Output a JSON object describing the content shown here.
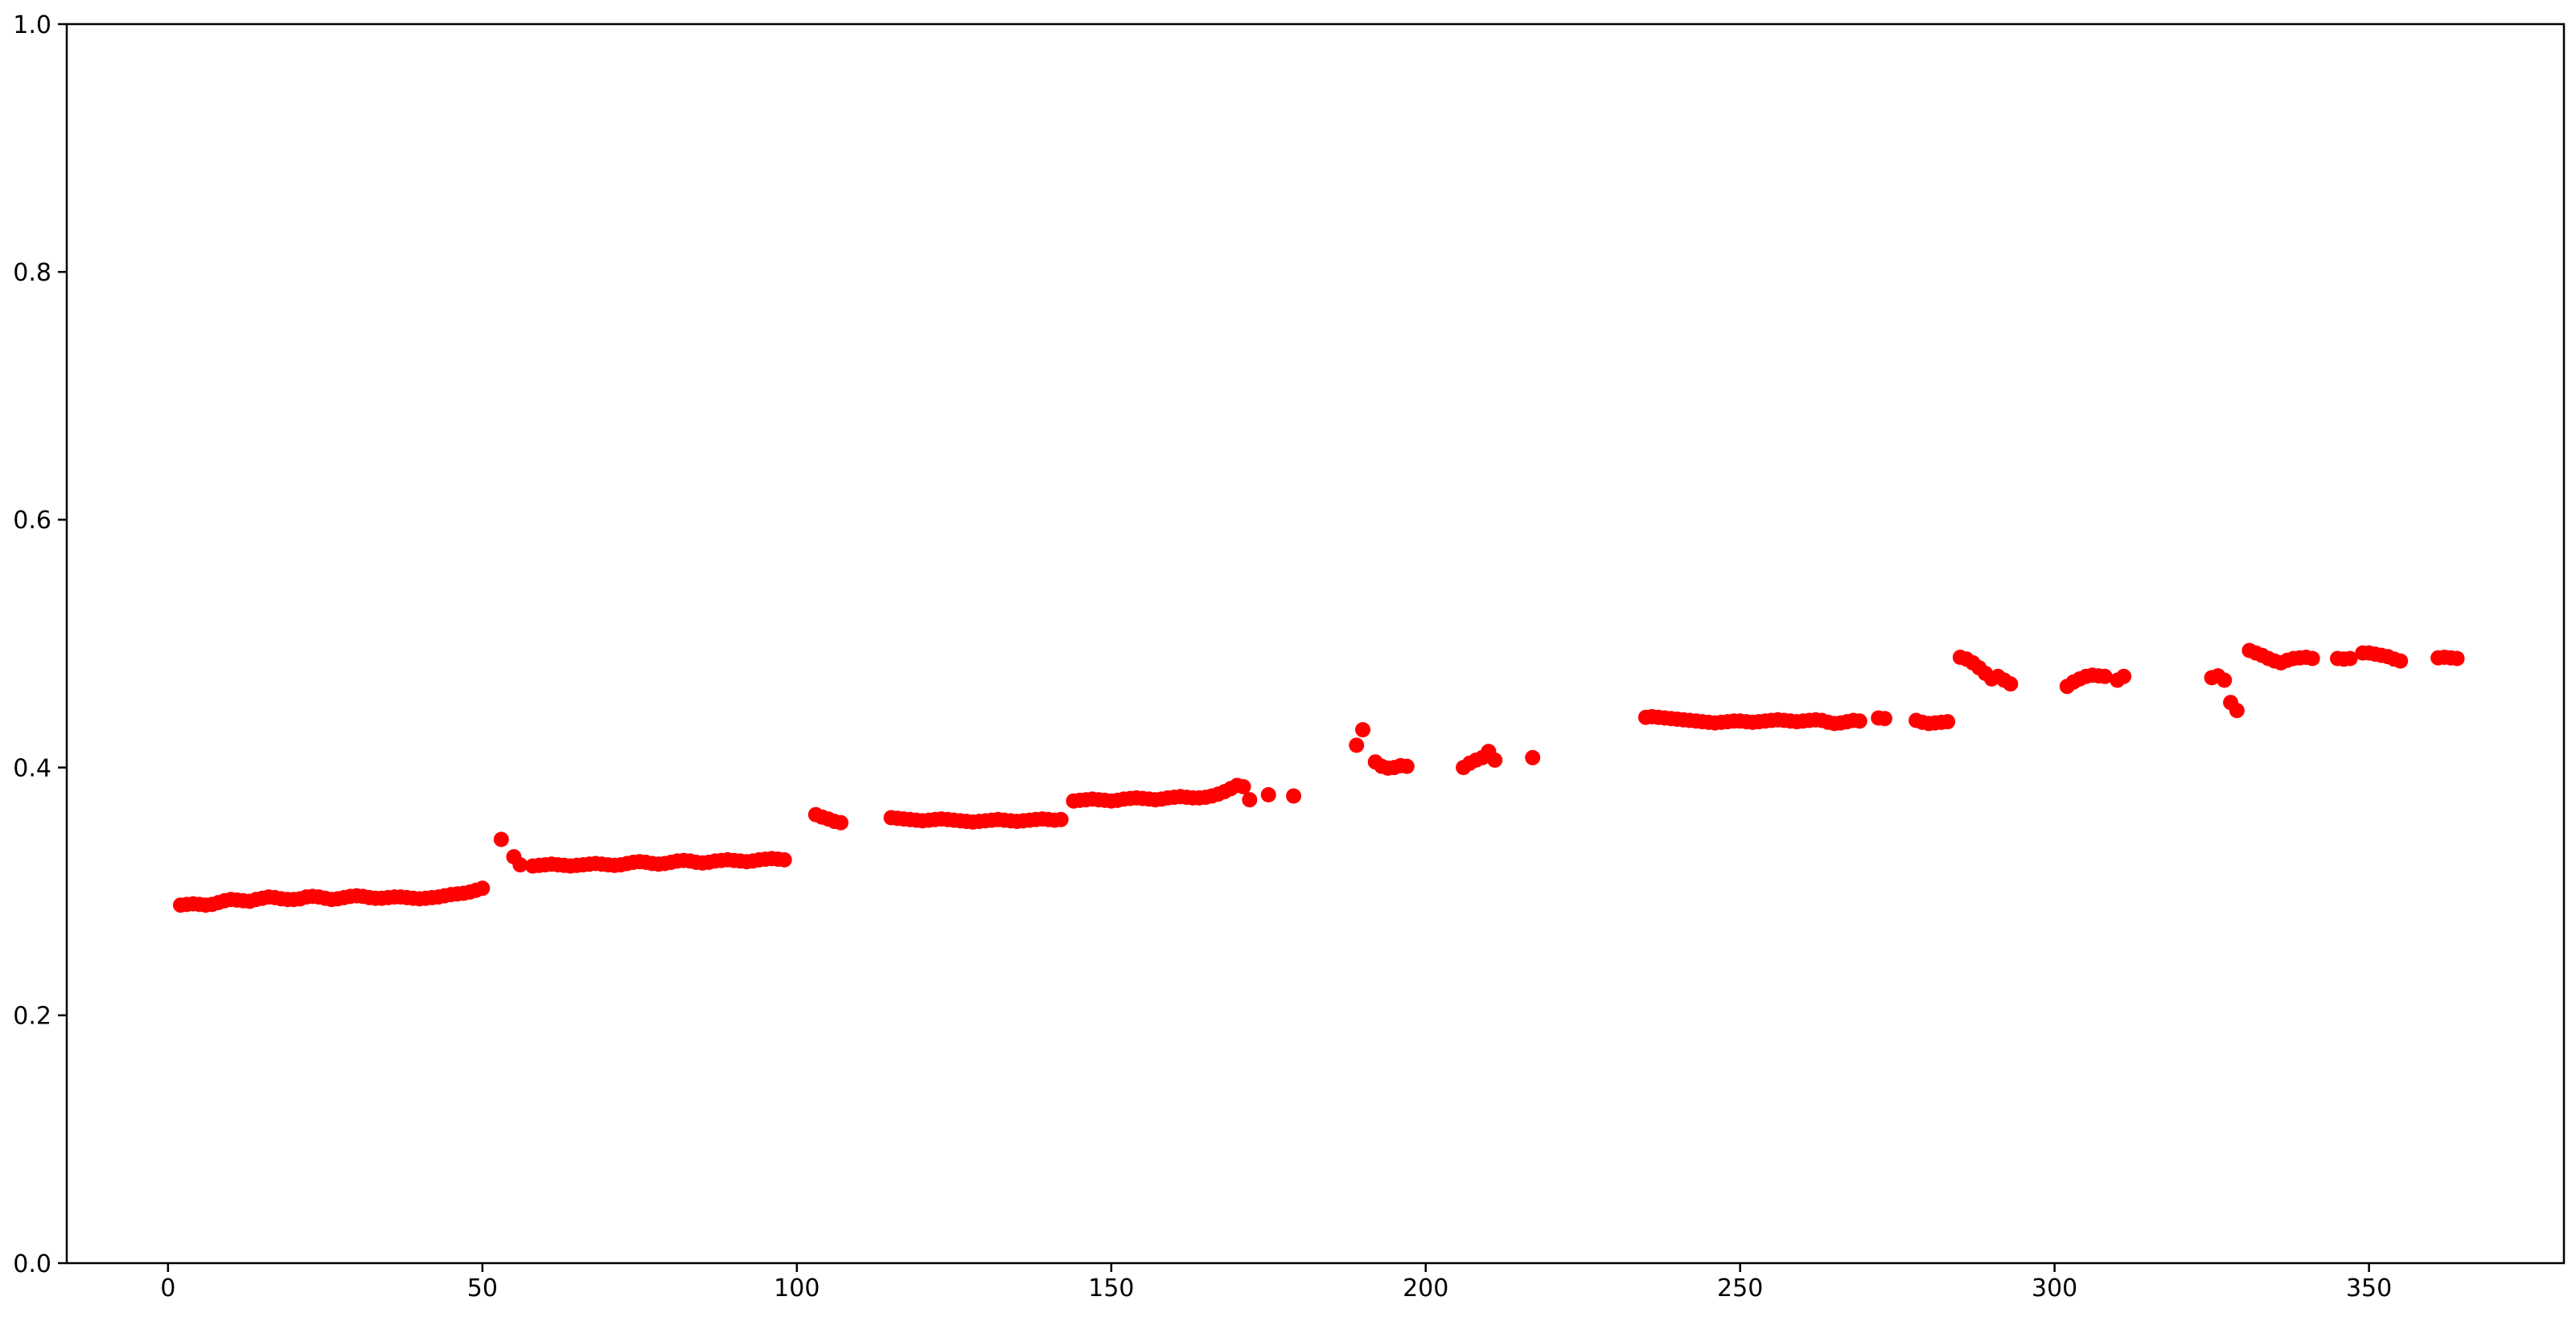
{
  "figure": {
    "background": "#ffffff",
    "axis_color": "#000000",
    "tick_label_color": "#000000"
  },
  "chart_data": {
    "type": "scatter",
    "title": "",
    "xlabel": "",
    "ylabel": "",
    "xlim": [
      -16.1,
      381.0
    ],
    "ylim": [
      0.0,
      1.0
    ],
    "x_ticks": [
      0,
      50,
      100,
      150,
      200,
      250,
      300,
      350
    ],
    "x_tick_labels": [
      "0",
      "50",
      "100",
      "150",
      "200",
      "250",
      "300",
      "350"
    ],
    "y_ticks": [
      0.0,
      0.2,
      0.4,
      0.6,
      0.8,
      1.0
    ],
    "y_tick_labels": [
      "0.0",
      "0.2",
      "0.4",
      "0.6",
      "0.8",
      "1.0"
    ],
    "grid": false,
    "legend": null,
    "frame": "full-box",
    "series": [
      {
        "name": "red-scatter",
        "color": "#ff0000",
        "marker": "circle",
        "points": [
          [
            2,
            0.289
          ],
          [
            3,
            0.2895
          ],
          [
            4,
            0.29
          ],
          [
            5,
            0.2895
          ],
          [
            6,
            0.289
          ],
          [
            7,
            0.2895
          ],
          [
            8,
            0.291
          ],
          [
            9,
            0.2925
          ],
          [
            10,
            0.2935
          ],
          [
            11,
            0.293
          ],
          [
            12,
            0.2925
          ],
          [
            13,
            0.292
          ],
          [
            14,
            0.2935
          ],
          [
            15,
            0.2945
          ],
          [
            16,
            0.2955
          ],
          [
            17,
            0.295
          ],
          [
            18,
            0.294
          ],
          [
            19,
            0.2935
          ],
          [
            20,
            0.2935
          ],
          [
            21,
            0.294
          ],
          [
            22,
            0.2955
          ],
          [
            23,
            0.296
          ],
          [
            24,
            0.2955
          ],
          [
            25,
            0.2945
          ],
          [
            26,
            0.2935
          ],
          [
            27,
            0.294
          ],
          [
            28,
            0.295
          ],
          [
            29,
            0.296
          ],
          [
            30,
            0.2965
          ],
          [
            31,
            0.296
          ],
          [
            32,
            0.295
          ],
          [
            33,
            0.2945
          ],
          [
            34,
            0.2945
          ],
          [
            35,
            0.295
          ],
          [
            36,
            0.2955
          ],
          [
            37,
            0.2955
          ],
          [
            38,
            0.295
          ],
          [
            39,
            0.2945
          ],
          [
            40,
            0.294
          ],
          [
            41,
            0.2945
          ],
          [
            42,
            0.295
          ],
          [
            43,
            0.2955
          ],
          [
            44,
            0.2965
          ],
          [
            45,
            0.2975
          ],
          [
            46,
            0.298
          ],
          [
            47,
            0.2985
          ],
          [
            48,
            0.2995
          ],
          [
            49,
            0.301
          ],
          [
            50,
            0.3025
          ],
          [
            53,
            0.342
          ],
          [
            55,
            0.328
          ],
          [
            56,
            0.3215
          ],
          [
            58,
            0.3205
          ],
          [
            59,
            0.321
          ],
          [
            60,
            0.3215
          ],
          [
            61,
            0.322
          ],
          [
            62,
            0.3215
          ],
          [
            63,
            0.321
          ],
          [
            64,
            0.3205
          ],
          [
            65,
            0.321
          ],
          [
            66,
            0.3215
          ],
          [
            67,
            0.322
          ],
          [
            68,
            0.3225
          ],
          [
            69,
            0.322
          ],
          [
            70,
            0.3215
          ],
          [
            71,
            0.321
          ],
          [
            72,
            0.3215
          ],
          [
            73,
            0.3225
          ],
          [
            74,
            0.3235
          ],
          [
            75,
            0.324
          ],
          [
            76,
            0.3235
          ],
          [
            77,
            0.3225
          ],
          [
            78,
            0.322
          ],
          [
            79,
            0.3225
          ],
          [
            80,
            0.3235
          ],
          [
            81,
            0.3245
          ],
          [
            82,
            0.325
          ],
          [
            83,
            0.3245
          ],
          [
            84,
            0.3235
          ],
          [
            85,
            0.323
          ],
          [
            86,
            0.3235
          ],
          [
            87,
            0.3245
          ],
          [
            88,
            0.325
          ],
          [
            89,
            0.3255
          ],
          [
            90,
            0.325
          ],
          [
            91,
            0.3245
          ],
          [
            92,
            0.324
          ],
          [
            93,
            0.3245
          ],
          [
            94,
            0.3255
          ],
          [
            95,
            0.326
          ],
          [
            96,
            0.3265
          ],
          [
            97,
            0.326
          ],
          [
            98,
            0.3255
          ],
          [
            103,
            0.362
          ],
          [
            104,
            0.36
          ],
          [
            105,
            0.3585
          ],
          [
            106,
            0.3565
          ],
          [
            107,
            0.3555
          ],
          [
            115,
            0.3595
          ],
          [
            116,
            0.359
          ],
          [
            117,
            0.3585
          ],
          [
            118,
            0.358
          ],
          [
            119,
            0.3575
          ],
          [
            120,
            0.357
          ],
          [
            121,
            0.3575
          ],
          [
            122,
            0.358
          ],
          [
            123,
            0.3585
          ],
          [
            124,
            0.358
          ],
          [
            125,
            0.3575
          ],
          [
            126,
            0.357
          ],
          [
            127,
            0.3565
          ],
          [
            128,
            0.356
          ],
          [
            129,
            0.3565
          ],
          [
            130,
            0.357
          ],
          [
            131,
            0.3575
          ],
          [
            132,
            0.358
          ],
          [
            133,
            0.3575
          ],
          [
            134,
            0.357
          ],
          [
            135,
            0.3565
          ],
          [
            136,
            0.357
          ],
          [
            137,
            0.3575
          ],
          [
            138,
            0.358
          ],
          [
            139,
            0.3585
          ],
          [
            140,
            0.358
          ],
          [
            141,
            0.3575
          ],
          [
            142,
            0.358
          ],
          [
            144,
            0.373
          ],
          [
            145,
            0.3735
          ],
          [
            146,
            0.374
          ],
          [
            147,
            0.3745
          ],
          [
            148,
            0.374
          ],
          [
            149,
            0.3735
          ],
          [
            150,
            0.373
          ],
          [
            151,
            0.3735
          ],
          [
            152,
            0.3745
          ],
          [
            153,
            0.375
          ],
          [
            154,
            0.3755
          ],
          [
            155,
            0.375
          ],
          [
            156,
            0.3745
          ],
          [
            157,
            0.374
          ],
          [
            158,
            0.3745
          ],
          [
            159,
            0.3755
          ],
          [
            160,
            0.376
          ],
          [
            161,
            0.3765
          ],
          [
            162,
            0.376
          ],
          [
            163,
            0.3755
          ],
          [
            164,
            0.3755
          ],
          [
            165,
            0.376
          ],
          [
            166,
            0.377
          ],
          [
            167,
            0.3785
          ],
          [
            168,
            0.3805
          ],
          [
            169,
            0.383
          ],
          [
            170,
            0.3855
          ],
          [
            171,
            0.3845
          ],
          [
            172,
            0.374
          ],
          [
            175,
            0.378
          ],
          [
            179,
            0.377
          ],
          [
            189,
            0.418
          ],
          [
            190,
            0.4305
          ],
          [
            192,
            0.4045
          ],
          [
            193,
            0.401
          ],
          [
            194,
            0.3995
          ],
          [
            195,
            0.4
          ],
          [
            196,
            0.4015
          ],
          [
            197,
            0.401
          ],
          [
            206,
            0.4
          ],
          [
            207,
            0.4035
          ],
          [
            208,
            0.406
          ],
          [
            209,
            0.408
          ],
          [
            210,
            0.413
          ],
          [
            211,
            0.406
          ],
          [
            217,
            0.408
          ],
          [
            235,
            0.4405
          ],
          [
            236,
            0.441
          ],
          [
            237,
            0.4405
          ],
          [
            238,
            0.44
          ],
          [
            239,
            0.4395
          ],
          [
            240,
            0.439
          ],
          [
            241,
            0.4385
          ],
          [
            242,
            0.438
          ],
          [
            243,
            0.4375
          ],
          [
            244,
            0.437
          ],
          [
            245,
            0.4365
          ],
          [
            246,
            0.436
          ],
          [
            247,
            0.4365
          ],
          [
            248,
            0.437
          ],
          [
            249,
            0.4375
          ],
          [
            250,
            0.4375
          ],
          [
            251,
            0.437
          ],
          [
            252,
            0.4365
          ],
          [
            253,
            0.437
          ],
          [
            254,
            0.4375
          ],
          [
            255,
            0.438
          ],
          [
            256,
            0.4385
          ],
          [
            257,
            0.438
          ],
          [
            258,
            0.4375
          ],
          [
            259,
            0.437
          ],
          [
            260,
            0.4375
          ],
          [
            261,
            0.438
          ],
          [
            262,
            0.4385
          ],
          [
            263,
            0.438
          ],
          [
            264,
            0.4365
          ],
          [
            265,
            0.4355
          ],
          [
            266,
            0.436
          ],
          [
            267,
            0.437
          ],
          [
            268,
            0.438
          ],
          [
            269,
            0.4375
          ],
          [
            272,
            0.44
          ],
          [
            273,
            0.4395
          ],
          [
            278,
            0.438
          ],
          [
            279,
            0.4365
          ],
          [
            280,
            0.4355
          ],
          [
            281,
            0.436
          ],
          [
            282,
            0.4365
          ],
          [
            283,
            0.437
          ],
          [
            285,
            0.489
          ],
          [
            286,
            0.4875
          ],
          [
            287,
            0.4845
          ],
          [
            288,
            0.4805
          ],
          [
            289,
            0.476
          ],
          [
            290,
            0.4715
          ],
          [
            291,
            0.4735
          ],
          [
            292,
            0.4705
          ],
          [
            293,
            0.4675
          ],
          [
            302,
            0.4655
          ],
          [
            303,
            0.469
          ],
          [
            304,
            0.4715
          ],
          [
            305,
            0.4735
          ],
          [
            306,
            0.4745
          ],
          [
            307,
            0.474
          ],
          [
            308,
            0.4735
          ],
          [
            310,
            0.4705
          ],
          [
            311,
            0.4735
          ],
          [
            325,
            0.4725
          ],
          [
            326,
            0.474
          ],
          [
            327,
            0.4705
          ],
          [
            328,
            0.4525
          ],
          [
            329,
            0.446
          ],
          [
            331,
            0.4945
          ],
          [
            332,
            0.4925
          ],
          [
            333,
            0.4905
          ],
          [
            334,
            0.488
          ],
          [
            335,
            0.486
          ],
          [
            336,
            0.4845
          ],
          [
            337,
            0.4865
          ],
          [
            338,
            0.488
          ],
          [
            339,
            0.4885
          ],
          [
            340,
            0.489
          ],
          [
            341,
            0.488
          ],
          [
            345,
            0.488
          ],
          [
            346,
            0.4875
          ],
          [
            347,
            0.488
          ],
          [
            349,
            0.4925
          ],
          [
            350,
            0.4925
          ],
          [
            351,
            0.4915
          ],
          [
            352,
            0.4905
          ],
          [
            353,
            0.4895
          ],
          [
            354,
            0.4875
          ],
          [
            355,
            0.486
          ],
          [
            361,
            0.4885
          ],
          [
            362,
            0.489
          ],
          [
            363,
            0.4885
          ],
          [
            364,
            0.488
          ]
        ]
      }
    ]
  }
}
